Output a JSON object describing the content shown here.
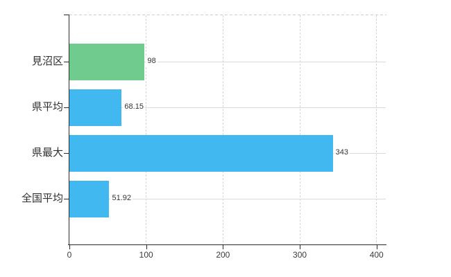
{
  "chart_data": {
    "type": "bar",
    "orientation": "horizontal",
    "title": "",
    "xlabel": "",
    "ylabel": "",
    "categories": [
      "見沼区",
      "県平均",
      "県最大",
      "全国平均"
    ],
    "values": [
      98,
      68.15,
      343,
      51.92
    ],
    "value_labels": [
      "98",
      "68.15",
      "343",
      "51.92"
    ],
    "bar_colors": [
      "#6fcc8e",
      "#41b8f0",
      "#41b8f0",
      "#41b8f0"
    ],
    "x_tick_values": [
      0,
      100,
      200,
      300,
      400
    ],
    "x_tick_labels": [
      "0",
      "100",
      "200",
      "300",
      "400"
    ],
    "xlim": [
      0,
      412
    ],
    "grid": true,
    "legend": false
  },
  "theme": {
    "background": "#ffffff",
    "axis_color": "#2b2b2b",
    "h_grid_color": "#d6ddd6",
    "v_grid_color": "#d6d6d6",
    "category_label_color": "#2f2f2f",
    "value_label_color": "#333333",
    "tick_label_color": "#3a3a3a",
    "green": "#6fcc8e",
    "blue": "#41b8f0"
  }
}
